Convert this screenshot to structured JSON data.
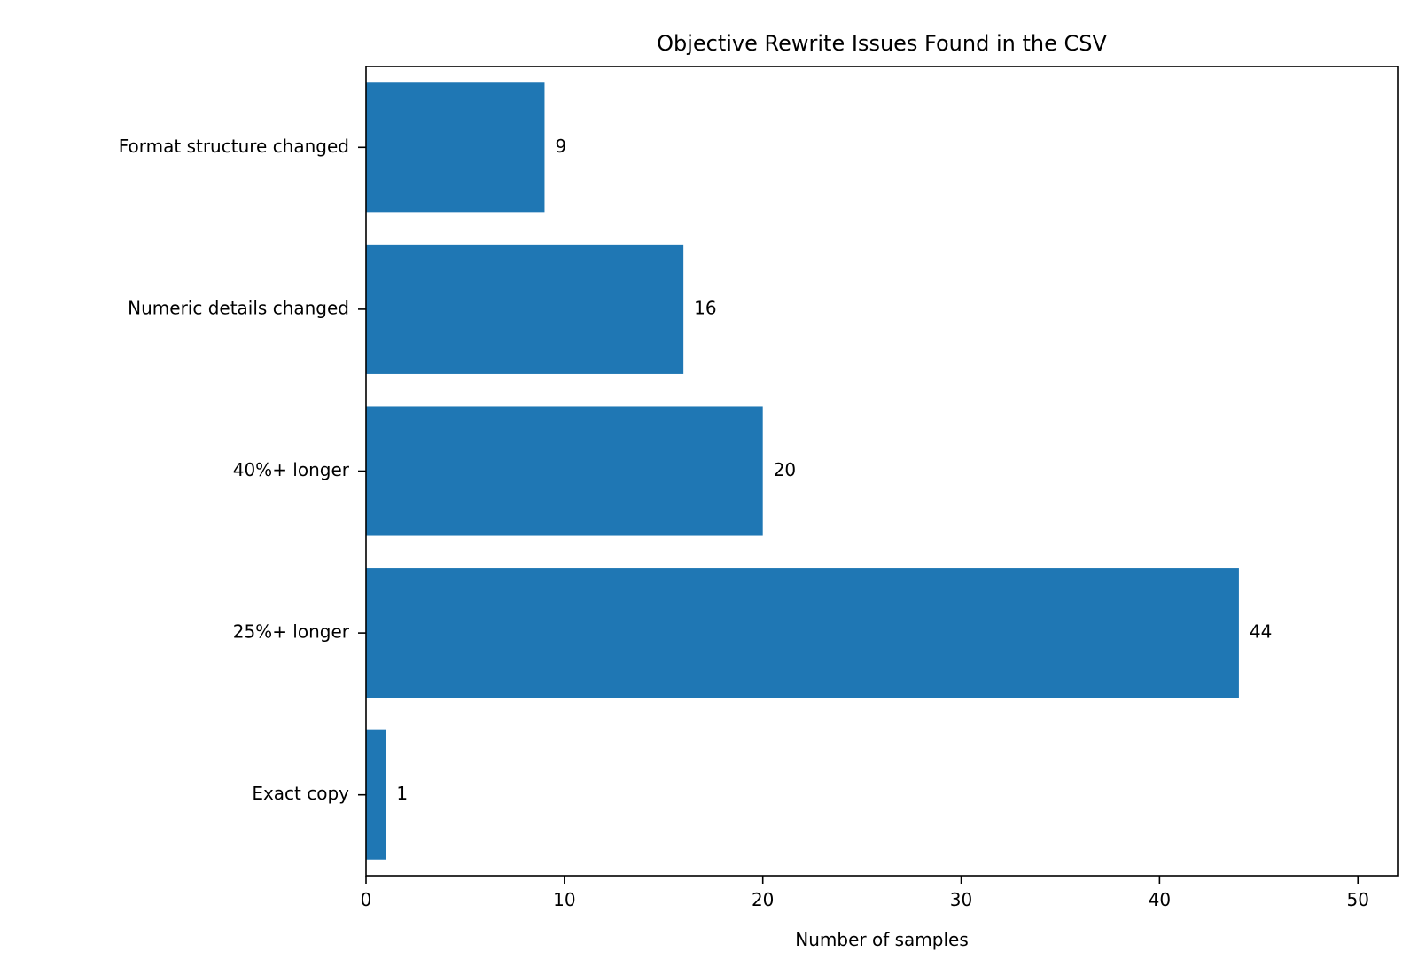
{
  "chart_data": {
    "type": "bar",
    "orientation": "horizontal",
    "title": "Objective Rewrite Issues Found in the CSV",
    "xlabel": "Number of samples",
    "ylabel": "",
    "categories": [
      "Exact copy",
      "25%+ longer",
      "40%+ longer",
      "Numeric details changed",
      "Format structure changed"
    ],
    "values": [
      1,
      44,
      20,
      16,
      9
    ],
    "data_labels": [
      "1",
      "44",
      "20",
      "16",
      "9"
    ],
    "xlim": [
      0,
      52
    ],
    "xticks": [
      0,
      10,
      20,
      30,
      40,
      50
    ],
    "xtick_labels": [
      "0",
      "10",
      "20",
      "30",
      "40",
      "50"
    ],
    "grid": false,
    "legend": "none",
    "colors": {
      "bar": "#1f77b4",
      "axis": "#000000",
      "background": "#ffffff"
    }
  }
}
